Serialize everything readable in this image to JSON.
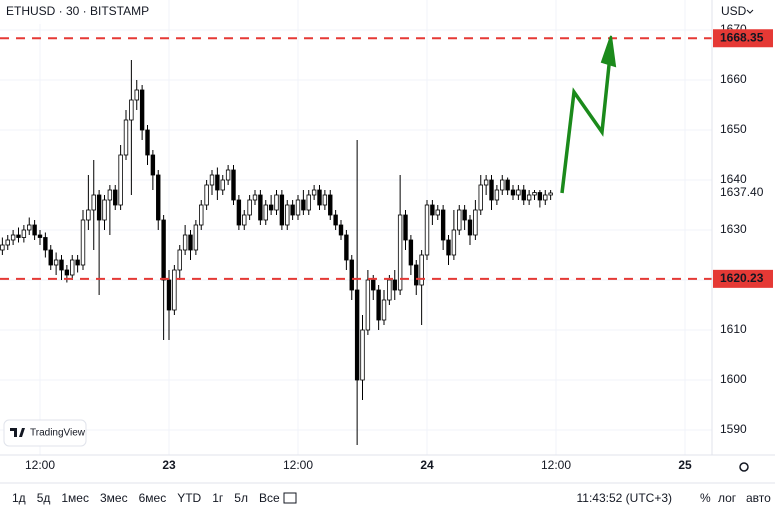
{
  "chart_data": {
    "type": "candlestick",
    "title": "ETHUSD · 30 · BITSTAMP",
    "currency": "USD",
    "x": [
      8.5,
      9,
      9.5,
      10,
      10.5,
      11,
      11.5,
      12,
      12.5,
      13,
      13.5,
      14,
      14.5,
      15,
      15.5,
      16,
      16.5,
      17,
      17.5,
      18,
      18.5,
      19,
      19.5,
      20,
      20.5,
      21,
      21.5,
      22,
      22.5,
      23,
      23.5,
      24,
      24.5,
      25,
      25.5,
      26,
      26.5,
      27,
      27.5,
      28,
      28.5,
      29,
      29.5,
      30,
      30.5,
      31,
      31.5,
      32,
      32.5,
      33,
      33.5,
      34,
      34.5,
      35,
      35.5,
      36,
      36.5,
      37,
      37.5,
      38,
      38.5,
      39,
      39.5,
      40,
      40.5,
      41,
      41.5,
      42,
      42.5,
      43,
      43.5,
      44,
      44.5,
      45,
      45.5,
      46,
      46.5,
      47,
      47.5,
      48,
      48.5,
      49,
      49.5,
      50,
      50.5,
      51,
      51.5,
      52,
      52.5,
      53,
      53.5,
      54,
      54.5,
      55,
      55.5,
      56,
      56.5,
      57,
      57.5,
      58,
      58.5,
      59,
      59.5
    ],
    "open": [
      1626,
      1627,
      1628,
      1629,
      1628.5,
      1630,
      1631,
      1629,
      1628.5,
      1626,
      1623,
      1624,
      1622,
      1621,
      1624,
      1623,
      1632,
      1634,
      1637,
      1632,
      1636,
      1638,
      1635,
      1645,
      1652,
      1656,
      1658,
      1650,
      1645,
      1641,
      1632,
      1620,
      1614,
      1622,
      1626,
      1629,
      1626,
      1631,
      1635,
      1639,
      1641,
      1638,
      1640,
      1642,
      1636,
      1631,
      1633,
      1636,
      1637,
      1632,
      1635,
      1634,
      1637,
      1631,
      1635,
      1633,
      1636,
      1634,
      1637,
      1638,
      1635,
      1637,
      1633,
      1631,
      1629,
      1624,
      1618,
      1600,
      1610,
      1620,
      1618,
      1612,
      1616,
      1620,
      1618,
      1633,
      1628,
      1623,
      1619,
      1625,
      1635,
      1633,
      1634,
      1628,
      1625,
      1630,
      1634,
      1632,
      1629,
      1634,
      1639,
      1640,
      1636,
      1638,
      1640,
      1638,
      1637,
      1638,
      1636,
      1637,
      1637.5,
      1636,
      1637
    ],
    "high": [
      1628.5,
      1629,
      1630,
      1630.5,
      1631,
      1632.5,
      1632,
      1630,
      1629.5,
      1627,
      1625.5,
      1625,
      1623,
      1625,
      1625,
      1634,
      1641,
      1644,
      1638,
      1637,
      1639,
      1639,
      1647,
      1654,
      1664,
      1660,
      1659,
      1651,
      1646,
      1642,
      1633,
      1622,
      1623,
      1627,
      1631,
      1630,
      1632,
      1636,
      1640,
      1642,
      1642.5,
      1641,
      1643,
      1643,
      1637,
      1634,
      1637,
      1638,
      1638,
      1636,
      1637,
      1638,
      1638,
      1636,
      1636,
      1637,
      1638,
      1638,
      1639,
      1639,
      1638,
      1638,
      1634,
      1632,
      1630,
      1625,
      1648,
      1613,
      1622,
      1621,
      1619,
      1618,
      1621,
      1622,
      1641,
      1634,
      1629,
      1624,
      1626,
      1636,
      1636,
      1635,
      1635,
      1629,
      1634,
      1635,
      1635,
      1633,
      1636,
      1641,
      1641,
      1641,
      1639,
      1641,
      1640.5,
      1639,
      1639,
      1639,
      1638,
      1638,
      1638,
      1638,
      1638
    ],
    "low": [
      1625,
      1626,
      1627,
      1627.5,
      1627.5,
      1629,
      1628,
      1627,
      1624.5,
      1622,
      1621,
      1620,
      1619.5,
      1620,
      1621.5,
      1622,
      1630,
      1626,
      1617,
      1630,
      1629,
      1634,
      1634,
      1644,
      1637,
      1654,
      1648,
      1643,
      1638,
      1630,
      1608,
      1608,
      1613,
      1620,
      1625,
      1624,
      1625,
      1630,
      1634,
      1637,
      1636,
      1637,
      1639,
      1635,
      1630,
      1630,
      1632,
      1635,
      1631,
      1631,
      1633,
      1633,
      1630,
      1630,
      1632,
      1632,
      1633,
      1633,
      1636,
      1634,
      1634,
      1632,
      1630,
      1628,
      1622,
      1616,
      1587,
      1596,
      1609,
      1616,
      1610,
      1611,
      1615,
      1616,
      1617,
      1626,
      1621,
      1617,
      1611,
      1624,
      1631,
      1632,
      1626,
      1623,
      1624,
      1629,
      1630,
      1627,
      1628,
      1633,
      1637,
      1634,
      1635,
      1637,
      1637,
      1636,
      1636,
      1635,
      1635,
      1636,
      1634.5,
      1635,
      1636
    ],
    "close": [
      1627,
      1628,
      1629,
      1628.5,
      1630,
      1631,
      1629,
      1628.5,
      1626,
      1623,
      1624,
      1622,
      1621,
      1624,
      1623,
      1632,
      1634,
      1637,
      1632,
      1636,
      1638,
      1635,
      1645,
      1652,
      1656,
      1658,
      1650,
      1645,
      1641,
      1632,
      1620,
      1614,
      1622,
      1626,
      1629,
      1626,
      1631,
      1635,
      1639,
      1641,
      1638,
      1640,
      1642,
      1636,
      1631,
      1633,
      1636,
      1637,
      1632,
      1635,
      1634,
      1637,
      1631,
      1635,
      1633,
      1636,
      1634,
      1637,
      1638,
      1635,
      1637,
      1633,
      1631,
      1629,
      1624,
      1618,
      1600,
      1610,
      1620,
      1618,
      1612,
      1616,
      1620,
      1618,
      1633,
      1628,
      1623,
      1619,
      1625,
      1635,
      1633,
      1634,
      1628,
      1625,
      1630,
      1634,
      1632,
      1629,
      1634,
      1639,
      1640,
      1636,
      1638,
      1640,
      1638,
      1637,
      1638,
      1636,
      1637,
      1637.5,
      1636,
      1637,
      1637.4
    ],
    "xlim": [
      8.28,
      74.51
    ],
    "ylim": [
      1585,
      1676
    ],
    "xticks": [
      {
        "value": 12,
        "label": "12:00"
      },
      {
        "value": 24,
        "label": "23"
      },
      {
        "value": 36,
        "label": "12:00"
      },
      {
        "value": 48,
        "label": "24"
      },
      {
        "value": 60,
        "label": "12:00"
      },
      {
        "value": 72,
        "label": "25"
      }
    ],
    "yticks": [
      1590,
      1600,
      1610,
      1620,
      1630,
      1640,
      1650,
      1660,
      1670
    ],
    "levels": [
      1668.35,
      1620.23
    ],
    "level_color": "#e53935",
    "last_price": {
      "value": 1637.4,
      "label": "1637.40"
    },
    "up_color": "#ffffff",
    "down_color": "#000000",
    "grid": true
  },
  "watermark": "TradingView",
  "toolbar": {
    "ranges": [
      "1д",
      "5д",
      "1мес",
      "3мес",
      "6мес",
      "YTD",
      "1г",
      "5л",
      "Все"
    ],
    "time": "11:43:52 (UTC+3)",
    "options": [
      "%",
      "лог",
      "авто"
    ]
  }
}
